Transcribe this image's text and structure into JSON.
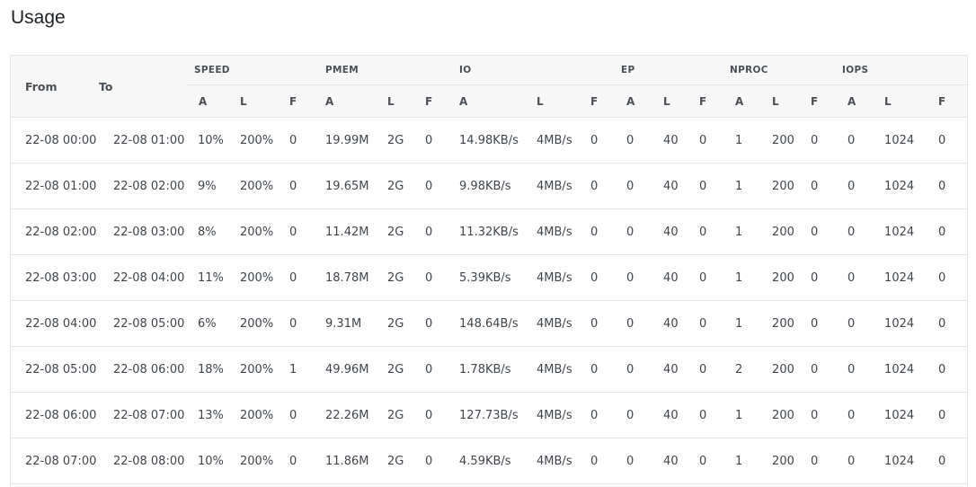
{
  "page_title": "Usage",
  "table": {
    "from_label": "From",
    "to_label": "To",
    "groups": [
      "SPEED",
      "PMEM",
      "IO",
      "EP",
      "NPROC",
      "IOPS"
    ],
    "sub_labels": [
      "A",
      "L",
      "F"
    ],
    "rows": [
      [
        "22-08 00:00",
        "22-08 01:00",
        "10%",
        "200%",
        "0",
        "19.99M",
        "2G",
        "0",
        "14.98KB/s",
        "4MB/s",
        "0",
        "0",
        "40",
        "0",
        "1",
        "200",
        "0",
        "0",
        "1024",
        "0"
      ],
      [
        "22-08 01:00",
        "22-08 02:00",
        "9%",
        "200%",
        "0",
        "19.65M",
        "2G",
        "0",
        "9.98KB/s",
        "4MB/s",
        "0",
        "0",
        "40",
        "0",
        "1",
        "200",
        "0",
        "0",
        "1024",
        "0"
      ],
      [
        "22-08 02:00",
        "22-08 03:00",
        "8%",
        "200%",
        "0",
        "11.42M",
        "2G",
        "0",
        "11.32KB/s",
        "4MB/s",
        "0",
        "0",
        "40",
        "0",
        "1",
        "200",
        "0",
        "0",
        "1024",
        "0"
      ],
      [
        "22-08 03:00",
        "22-08 04:00",
        "11%",
        "200%",
        "0",
        "18.78M",
        "2G",
        "0",
        "5.39KB/s",
        "4MB/s",
        "0",
        "0",
        "40",
        "0",
        "1",
        "200",
        "0",
        "0",
        "1024",
        "0"
      ],
      [
        "22-08 04:00",
        "22-08 05:00",
        "6%",
        "200%",
        "0",
        "9.31M",
        "2G",
        "0",
        "148.64B/s",
        "4MB/s",
        "0",
        "0",
        "40",
        "0",
        "1",
        "200",
        "0",
        "0",
        "1024",
        "0"
      ],
      [
        "22-08 05:00",
        "22-08 06:00",
        "18%",
        "200%",
        "1",
        "49.96M",
        "2G",
        "0",
        "1.78KB/s",
        "4MB/s",
        "0",
        "0",
        "40",
        "0",
        "2",
        "200",
        "0",
        "0",
        "1024",
        "0"
      ],
      [
        "22-08 06:00",
        "22-08 07:00",
        "13%",
        "200%",
        "0",
        "22.26M",
        "2G",
        "0",
        "127.73B/s",
        "4MB/s",
        "0",
        "0",
        "40",
        "0",
        "1",
        "200",
        "0",
        "0",
        "1024",
        "0"
      ],
      [
        "22-08 07:00",
        "22-08 08:00",
        "10%",
        "200%",
        "0",
        "11.86M",
        "2G",
        "0",
        "4.59KB/s",
        "4MB/s",
        "0",
        "0",
        "40",
        "0",
        "1",
        "200",
        "0",
        "0",
        "1024",
        "0"
      ]
    ]
  }
}
